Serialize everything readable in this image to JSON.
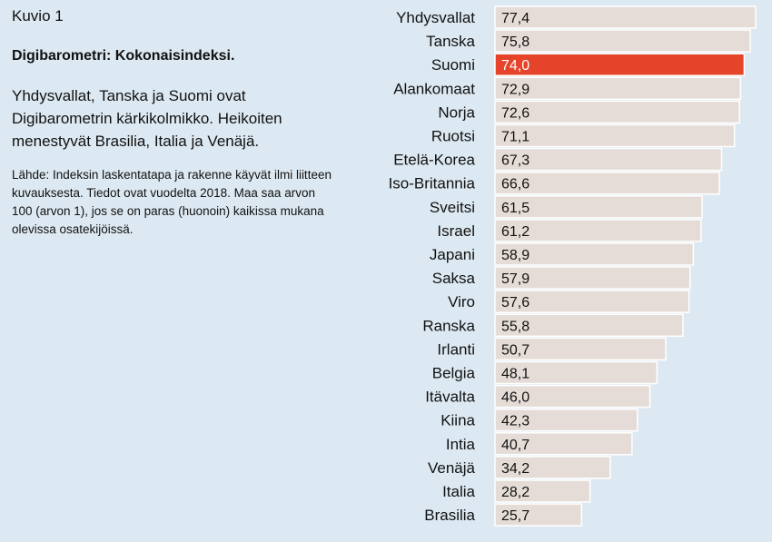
{
  "figure_label": "Kuvio 1",
  "chart_data": {
    "type": "bar",
    "orientation": "horizontal",
    "title": "Digibarometri: Kokonaisindeksi.",
    "summary": "Yhdysvallat, Tanska ja Suomi ovat Digibarometrin kärkikolmikko. Heikoiten menestyvät Brasilia, Italia ja Venäjä.",
    "source_note": "Lähde: Indeksin laskentatapa ja rakenne käyvät ilmi liitteen kuvauksesta. Tiedot ovat vuodelta 2018. Maa saa arvon 100 (arvon 1), jos se on paras (huonoin) kaikissa mukana olevissa osatekijöissä.",
    "categories": [
      "Yhdysvallat",
      "Tanska",
      "Suomi",
      "Alankomaat",
      "Norja",
      "Ruotsi",
      "Etelä-Korea",
      "Iso-Britannia",
      "Sveitsi",
      "Israel",
      "Japani",
      "Saksa",
      "Viro",
      "Ranska",
      "Irlanti",
      "Belgia",
      "Itävalta",
      "Kiina",
      "Intia",
      "Venäjä",
      "Italia",
      "Brasilia"
    ],
    "values": [
      77.4,
      75.8,
      74.0,
      72.9,
      72.6,
      71.1,
      67.3,
      66.6,
      61.5,
      61.2,
      58.9,
      57.9,
      57.6,
      55.8,
      50.7,
      48.1,
      46.0,
      42.3,
      40.7,
      34.2,
      28.2,
      25.7
    ],
    "value_labels": [
      "77,4",
      "75,8",
      "74,0",
      "72,9",
      "72,6",
      "71,1",
      "67,3",
      "66,6",
      "61,5",
      "61,2",
      "58,9",
      "57,9",
      "57,6",
      "55,8",
      "50,7",
      "48,1",
      "46,0",
      "42,3",
      "40,7",
      "34,2",
      "28,2",
      "25,7"
    ],
    "highlight": "Suomi",
    "xlim": [
      0,
      77.4
    ],
    "grid": false,
    "legend": "none",
    "colors": {
      "bar": "#e5dcd7",
      "bar_border": "#ffffff",
      "highlight": "#e6432b",
      "background": "#dde9f2"
    }
  }
}
